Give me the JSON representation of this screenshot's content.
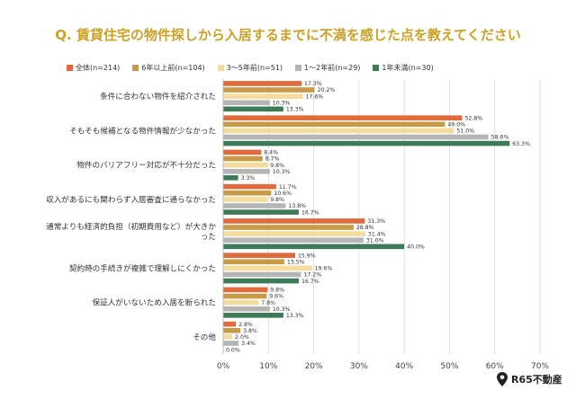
{
  "title": "Q. 賃貸住宅の物件探しから入居するまでに不満を感じた点を教えてください",
  "brand": "R65不動産",
  "colors": {
    "title": "#c9a227"
  },
  "chart_data": {
    "type": "bar",
    "orientation": "horizontal",
    "title": "Q. 賃貸住宅の物件探しから入居するまでに不満を感じた点を教えてください",
    "xlabel": "",
    "ylabel": "",
    "xlim": [
      0,
      70
    ],
    "x_ticks": [
      "0%",
      "10%",
      "20%",
      "30%",
      "40%",
      "50%",
      "60%",
      "70%"
    ],
    "grid": true,
    "legend_position": "top",
    "categories": [
      "条件に合わない物件を紹介された",
      "そもそも候補となる物件情報が少なかった",
      "物件のバリアフリー対応が不十分だった",
      "収入があるにも関わらず入居審査に通らなかった",
      "通常よりも経済的負担（初期費用など）が大きかった",
      "契約時の手続きが複雑で理解しにくかった",
      "保証人がいないため入居を断られた",
      "その他"
    ],
    "series": [
      {
        "name": "全体(n=214)",
        "color": "#e06a3b",
        "values": [
          17.3,
          52.8,
          8.4,
          11.7,
          31.3,
          15.9,
          9.8,
          2.8
        ],
        "labels": [
          "17.3%",
          "52.8%",
          "8.4%",
          "11.7%",
          "31.3%",
          "15.9%",
          "9.8%",
          "2.8%"
        ]
      },
      {
        "name": "6年以上前(n=104)",
        "color": "#c89a45",
        "values": [
          20.2,
          49.0,
          8.7,
          10.6,
          28.8,
          13.5,
          9.6,
          3.8
        ],
        "labels": [
          "20.2%",
          "49.0%",
          "8.7%",
          "10.6%",
          "28.8%",
          "13.5%",
          "9.6%",
          "3.8%"
        ]
      },
      {
        "name": "3〜5年前(n=51)",
        "color": "#f3dc9c",
        "values": [
          17.6,
          51.0,
          9.8,
          9.8,
          31.4,
          19.6,
          7.8,
          2.0
        ],
        "labels": [
          "17.6%",
          "51.0%",
          "9.8%",
          "9.8%",
          "31.4%",
          "19.6%",
          "7.8%",
          "2.0%"
        ]
      },
      {
        "name": "1〜2年前(n=29)",
        "color": "#b5b5b5",
        "values": [
          10.3,
          58.6,
          10.3,
          13.8,
          31.0,
          17.2,
          10.3,
          3.4
        ],
        "labels": [
          "10.3%",
          "58.6%",
          "10.3%",
          "13.8%",
          "31.0%",
          "17.2%",
          "10.3%",
          "3.4%"
        ]
      },
      {
        "name": "1年未満(n=30)",
        "color": "#3d7a57",
        "values": [
          13.3,
          63.3,
          3.3,
          16.7,
          40.0,
          16.7,
          13.3,
          0.0
        ],
        "labels": [
          "13.3%",
          "63.3%",
          "3.3%",
          "16.7%",
          "40.0%",
          "16.7%",
          "13.3%",
          "0.0%"
        ]
      }
    ]
  }
}
